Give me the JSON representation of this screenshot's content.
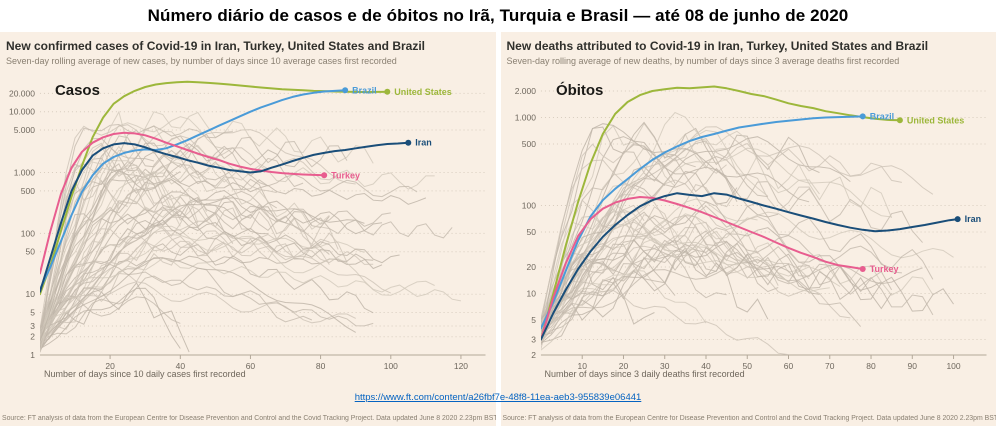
{
  "page": {
    "title": "Número diário de casos e de óbitos no Irã, Turquia e Brasil — até 08 de junho de 2020"
  },
  "footer": {
    "link": "https://www.ft.com/content/a26fbf7e-48f8-11ea-aeb3-955839e06441"
  },
  "source": "Source: FT analysis of data from the European Centre for Disease Prevention and Control and the Covid Tracking Project. Data updated June 8 2020 2.23pm BST",
  "colors": {
    "panel_bg": "#f9efe4",
    "link": "#0563c1",
    "brazil": "#4a9bd8",
    "united_states": "#9db73b",
    "iran": "#1a4e79",
    "turkey": "#e85d8f",
    "background_lines": "#cdc3b6"
  },
  "chart_data": [
    {
      "id": "cases",
      "type": "line",
      "title": "New confirmed cases of Covid-19 in Iran, Turkey, United States and Brazil",
      "subtitle": "Seven-day rolling average of new cases, by number of days since 10 average cases first recorded",
      "overlay_label": "Casos",
      "xlabel": "Number of days since 10 daily cases first recorded",
      "x_ticks": [
        20,
        40,
        60,
        80,
        100,
        120
      ],
      "xlim": [
        0,
        127
      ],
      "y_ticks": [
        20000,
        10000,
        5000,
        1000,
        500,
        100,
        50,
        10,
        5,
        3,
        2,
        1
      ],
      "ylim": [
        1,
        32000
      ],
      "grid": "horizontal-dotted",
      "scale": "log",
      "legend_position": "line-end-labels",
      "background": {
        "count": 58,
        "seed": 7
      },
      "series": [
        {
          "name": "United States",
          "color": "#9db73b",
          "points": [
            [
              0,
              10
            ],
            [
              3,
              30
            ],
            [
              6,
              110
            ],
            [
              9,
              400
            ],
            [
              12,
              1300
            ],
            [
              15,
              3800
            ],
            [
              18,
              8000
            ],
            [
              21,
              13500
            ],
            [
              24,
              18000
            ],
            [
              27,
              22000
            ],
            [
              30,
              25500
            ],
            [
              33,
              28000
            ],
            [
              36,
              29500
            ],
            [
              39,
              30500
            ],
            [
              42,
              31000
            ],
            [
              45,
              30500
            ],
            [
              48,
              29800
            ],
            [
              51,
              29000
            ],
            [
              54,
              28000
            ],
            [
              57,
              27000
            ],
            [
              60,
              26000
            ],
            [
              63,
              25000
            ],
            [
              66,
              24200
            ],
            [
              69,
              23500
            ],
            [
              72,
              23000
            ],
            [
              75,
              22500
            ],
            [
              78,
              22000
            ],
            [
              81,
              21800
            ],
            [
              84,
              21500
            ],
            [
              87,
              21300
            ],
            [
              90,
              21200
            ],
            [
              93,
              21000
            ],
            [
              96,
              21200
            ],
            [
              99,
              21300
            ]
          ]
        },
        {
          "name": "Brazil",
          "color": "#4a9bd8",
          "points": [
            [
              0,
              12
            ],
            [
              3,
              28
            ],
            [
              6,
              75
            ],
            [
              9,
              200
            ],
            [
              12,
              480
            ],
            [
              15,
              900
            ],
            [
              18,
              1400
            ],
            [
              21,
              1800
            ],
            [
              24,
              2100
            ],
            [
              27,
              2300
            ],
            [
              30,
              2400
            ],
            [
              33,
              2350
            ],
            [
              36,
              2500
            ],
            [
              39,
              2900
            ],
            [
              42,
              3400
            ],
            [
              45,
              4100
            ],
            [
              48,
              4900
            ],
            [
              51,
              5900
            ],
            [
              54,
              7000
            ],
            [
              57,
              8400
            ],
            [
              60,
              10000
            ],
            [
              63,
              11800
            ],
            [
              66,
              13500
            ],
            [
              69,
              15500
            ],
            [
              72,
              17500
            ],
            [
              75,
              19200
            ],
            [
              78,
              20500
            ],
            [
              81,
              21500
            ],
            [
              84,
              22000
            ],
            [
              87,
              22500
            ]
          ]
        },
        {
          "name": "Turkey",
          "color": "#e85d8f",
          "points": [
            [
              0,
              22
            ],
            [
              3,
              110
            ],
            [
              6,
              450
            ],
            [
              9,
              1200
            ],
            [
              12,
              2200
            ],
            [
              15,
              3100
            ],
            [
              18,
              3800
            ],
            [
              21,
              4300
            ],
            [
              24,
              4500
            ],
            [
              27,
              4400
            ],
            [
              30,
              4100
            ],
            [
              33,
              3600
            ],
            [
              36,
              3100
            ],
            [
              39,
              2700
            ],
            [
              42,
              2350
            ],
            [
              45,
              2050
            ],
            [
              48,
              1800
            ],
            [
              51,
              1600
            ],
            [
              54,
              1400
            ],
            [
              57,
              1250
            ],
            [
              60,
              1150
            ],
            [
              63,
              1080
            ],
            [
              66,
              1020
            ],
            [
              69,
              980
            ],
            [
              72,
              950
            ],
            [
              75,
              930
            ],
            [
              78,
              915
            ],
            [
              81,
              900
            ]
          ]
        },
        {
          "name": "Iran",
          "color": "#1a4e79",
          "points": [
            [
              0,
              11
            ],
            [
              3,
              40
            ],
            [
              6,
              150
            ],
            [
              9,
              500
            ],
            [
              12,
              1100
            ],
            [
              15,
              1900
            ],
            [
              18,
              2500
            ],
            [
              21,
              2900
            ],
            [
              24,
              3050
            ],
            [
              27,
              2900
            ],
            [
              30,
              2600
            ],
            [
              33,
              2250
            ],
            [
              36,
              2000
            ],
            [
              39,
              1800
            ],
            [
              42,
              1600
            ],
            [
              45,
              1450
            ],
            [
              48,
              1300
            ],
            [
              51,
              1200
            ],
            [
              54,
              1100
            ],
            [
              57,
              1050
            ],
            [
              60,
              1000
            ],
            [
              63,
              1050
            ],
            [
              66,
              1200
            ],
            [
              69,
              1350
            ],
            [
              72,
              1550
            ],
            [
              75,
              1750
            ],
            [
              78,
              1950
            ],
            [
              81,
              2100
            ],
            [
              84,
              2250
            ],
            [
              87,
              2350
            ],
            [
              90,
              2500
            ],
            [
              93,
              2650
            ],
            [
              96,
              2800
            ],
            [
              99,
              2950
            ],
            [
              102,
              3000
            ],
            [
              105,
              3100
            ]
          ]
        }
      ]
    },
    {
      "id": "deaths",
      "type": "line",
      "title": "New deaths attributed to Covid-19 in Iran, Turkey, United States and Brazil",
      "subtitle": "Seven-day rolling average of new deaths, by number of days since 3 average deaths first recorded",
      "overlay_label": "Óbitos",
      "xlabel": "Number of days since 3 daily deaths first recorded",
      "x_ticks": [
        10,
        20,
        30,
        40,
        50,
        60,
        70,
        80,
        90,
        100
      ],
      "xlim": [
        0,
        108
      ],
      "y_ticks": [
        2000,
        1000,
        500,
        100,
        50,
        20,
        10,
        5,
        3,
        2
      ],
      "ylim": [
        2,
        2600
      ],
      "grid": "horizontal-dotted",
      "scale": "log",
      "legend_position": "line-end-labels",
      "background": {
        "count": 52,
        "seed": 21
      },
      "series": [
        {
          "name": "United States",
          "color": "#9db73b",
          "points": [
            [
              0,
              3
            ],
            [
              3,
              10
            ],
            [
              6,
              35
            ],
            [
              9,
              110
            ],
            [
              12,
              300
            ],
            [
              15,
              650
            ],
            [
              18,
              1100
            ],
            [
              21,
              1500
            ],
            [
              24,
              1800
            ],
            [
              27,
              2000
            ],
            [
              30,
              2100
            ],
            [
              33,
              2180
            ],
            [
              36,
              2150
            ],
            [
              39,
              2200
            ],
            [
              42,
              2250
            ],
            [
              45,
              2150
            ],
            [
              48,
              2000
            ],
            [
              51,
              1850
            ],
            [
              54,
              1750
            ],
            [
              57,
              1600
            ],
            [
              60,
              1450
            ],
            [
              63,
              1350
            ],
            [
              66,
              1280
            ],
            [
              69,
              1180
            ],
            [
              72,
              1120
            ],
            [
              75,
              1060
            ],
            [
              78,
              1010
            ],
            [
              81,
              970
            ],
            [
              84,
              940
            ],
            [
              87,
              930
            ]
          ]
        },
        {
          "name": "Brazil",
          "color": "#4a9bd8",
          "points": [
            [
              0,
              4
            ],
            [
              3,
              8
            ],
            [
              6,
              18
            ],
            [
              9,
              40
            ],
            [
              12,
              75
            ],
            [
              15,
              115
            ],
            [
              18,
              155
            ],
            [
              21,
              200
            ],
            [
              24,
              260
            ],
            [
              27,
              330
            ],
            [
              30,
              400
            ],
            [
              33,
              470
            ],
            [
              36,
              540
            ],
            [
              39,
              600
            ],
            [
              42,
              650
            ],
            [
              45,
              710
            ],
            [
              48,
              770
            ],
            [
              51,
              810
            ],
            [
              54,
              850
            ],
            [
              57,
              890
            ],
            [
              60,
              920
            ],
            [
              63,
              950
            ],
            [
              66,
              980
            ],
            [
              69,
              1000
            ],
            [
              72,
              1010
            ],
            [
              75,
              1020
            ],
            [
              78,
              1030
            ]
          ]
        },
        {
          "name": "Turkey",
          "color": "#e85d8f",
          "points": [
            [
              0,
              3
            ],
            [
              3,
              9
            ],
            [
              6,
              22
            ],
            [
              9,
              45
            ],
            [
              12,
              70
            ],
            [
              15,
              92
            ],
            [
              18,
              108
            ],
            [
              21,
              119
            ],
            [
              24,
              125
            ],
            [
              27,
              122
            ],
            [
              30,
              114
            ],
            [
              33,
              104
            ],
            [
              36,
              94
            ],
            [
              39,
              84
            ],
            [
              42,
              74
            ],
            [
              45,
              65
            ],
            [
              48,
              57
            ],
            [
              51,
              50
            ],
            [
              54,
              44
            ],
            [
              57,
              38
            ],
            [
              60,
              33
            ],
            [
              63,
              29
            ],
            [
              66,
              26
            ],
            [
              69,
              23
            ],
            [
              72,
              21
            ],
            [
              75,
              20
            ],
            [
              78,
              19
            ]
          ]
        },
        {
          "name": "Iran",
          "color": "#1a4e79",
          "points": [
            [
              0,
              3
            ],
            [
              3,
              6
            ],
            [
              6,
              11
            ],
            [
              9,
              19
            ],
            [
              12,
              30
            ],
            [
              15,
              44
            ],
            [
              18,
              60
            ],
            [
              21,
              78
            ],
            [
              24,
              98
            ],
            [
              27,
              115
            ],
            [
              30,
              128
            ],
            [
              33,
              138
            ],
            [
              36,
              132
            ],
            [
              39,
              128
            ],
            [
              42,
              138
            ],
            [
              45,
              133
            ],
            [
              48,
              120
            ],
            [
              51,
              110
            ],
            [
              54,
              100
            ],
            [
              57,
              92
            ],
            [
              60,
              84
            ],
            [
              63,
              77
            ],
            [
              66,
              71
            ],
            [
              69,
              65
            ],
            [
              72,
              60
            ],
            [
              75,
              56
            ],
            [
              78,
              53
            ],
            [
              81,
              51
            ],
            [
              84,
              52
            ],
            [
              87,
              54
            ],
            [
              90,
              57
            ],
            [
              93,
              60
            ],
            [
              96,
              64
            ],
            [
              99,
              68
            ],
            [
              101,
              70
            ]
          ]
        }
      ]
    }
  ]
}
